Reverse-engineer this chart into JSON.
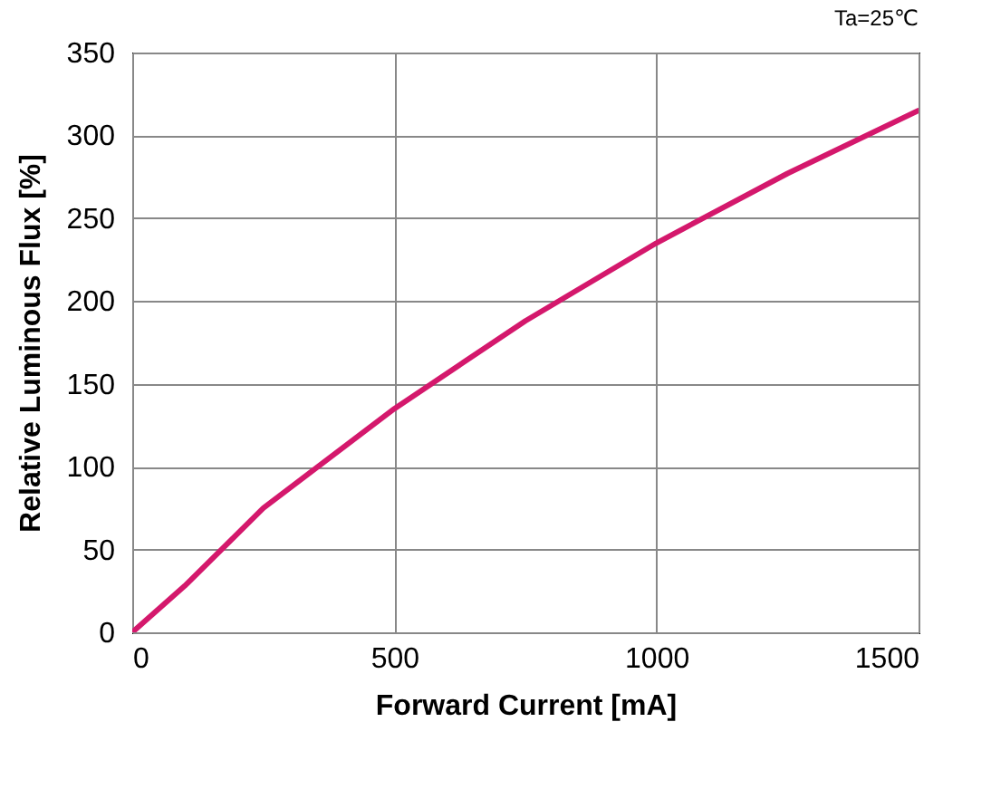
{
  "chart_data": {
    "type": "line",
    "xlabel": "Forward Current [mA]",
    "ylabel": "Relative Luminous Flux [%]",
    "annotations": [
      "Ta=25℃"
    ],
    "x": [
      0,
      100,
      250,
      500,
      750,
      1000,
      1250,
      1500
    ],
    "series": [
      {
        "color": "#d4186c",
        "values": [
          0,
          28,
          75,
          135,
          188,
          235,
          277,
          315
        ]
      }
    ],
    "xlim": [
      0,
      1500
    ],
    "xticks": [
      0,
      500,
      1000,
      1500
    ],
    "ylim": [
      0,
      350
    ],
    "yticks": [
      0,
      50,
      100,
      150,
      200,
      250,
      300,
      350
    ],
    "grid": true,
    "marker": "none",
    "line_style": "solid"
  }
}
